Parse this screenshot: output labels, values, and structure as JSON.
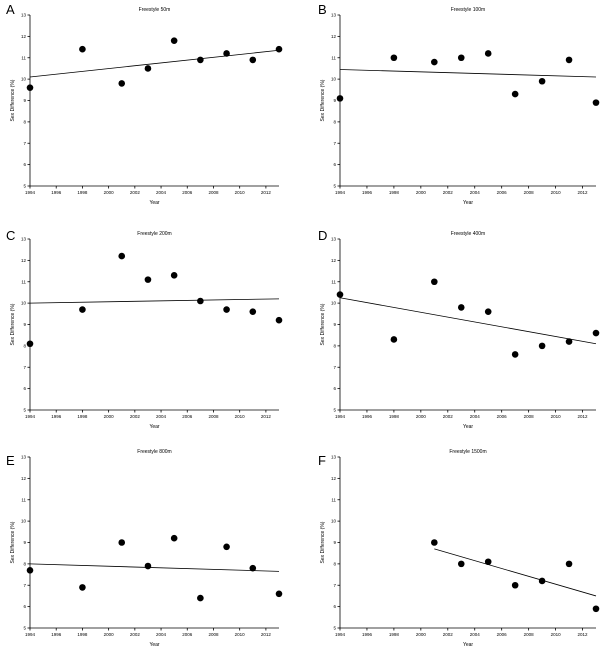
{
  "chart_data": [
    {
      "type": "scatter",
      "panel_label": "A",
      "title": "Freestyle 50m",
      "xlabel": "Year",
      "ylabel": "Sex Difference (%)",
      "xlim": [
        1994,
        2013
      ],
      "ylim": [
        5,
        13
      ],
      "x_ticks": [
        "1994",
        "1996",
        "1998",
        "2000",
        "2002",
        "2004",
        "2006",
        "2008",
        "2010",
        "2012"
      ],
      "y_ticks": [
        "5",
        "6",
        "7",
        "8",
        "9",
        "10",
        "11",
        "12",
        "13"
      ],
      "points": {
        "x": [
          1994,
          1998,
          2001,
          2003,
          2005,
          2007,
          2009,
          2011,
          2013
        ],
        "y": [
          9.6,
          11.4,
          9.8,
          10.5,
          11.8,
          10.9,
          11.2,
          10.9,
          11.4
        ]
      },
      "trend_line": {
        "x": [
          1994,
          2013
        ],
        "y": [
          10.1,
          11.35
        ]
      }
    },
    {
      "type": "scatter",
      "panel_label": "B",
      "title": "Freestyle 100m",
      "xlabel": "Year",
      "ylabel": "Sex Difference (%)",
      "xlim": [
        1994,
        2013
      ],
      "ylim": [
        5,
        13
      ],
      "x_ticks": [
        "1994",
        "1996",
        "1998",
        "2000",
        "2002",
        "2004",
        "2006",
        "2008",
        "2010",
        "2012"
      ],
      "y_ticks": [
        "5",
        "6",
        "7",
        "8",
        "9",
        "10",
        "11",
        "12",
        "13"
      ],
      "points": {
        "x": [
          1994,
          1998,
          2001,
          2003,
          2005,
          2007,
          2009,
          2011,
          2013
        ],
        "y": [
          9.1,
          11.0,
          10.8,
          11.0,
          11.2,
          9.3,
          9.9,
          10.9,
          8.9
        ]
      },
      "trend_line": {
        "x": [
          1994,
          2013
        ],
        "y": [
          10.45,
          10.1
        ]
      }
    },
    {
      "type": "scatter",
      "panel_label": "C",
      "title": "Freestyle 200m",
      "xlabel": "Year",
      "ylabel": "Sex Difference (%)",
      "xlim": [
        1994,
        2013
      ],
      "ylim": [
        5,
        13
      ],
      "x_ticks": [
        "1994",
        "1996",
        "1998",
        "2000",
        "2002",
        "2004",
        "2006",
        "2008",
        "2010",
        "2012"
      ],
      "y_ticks": [
        "5",
        "6",
        "7",
        "8",
        "9",
        "10",
        "11",
        "12",
        "13"
      ],
      "points": {
        "x": [
          1994,
          1998,
          2001,
          2003,
          2005,
          2007,
          2009,
          2011,
          2013
        ],
        "y": [
          8.1,
          9.7,
          12.2,
          11.1,
          11.3,
          10.1,
          9.7,
          9.6,
          9.2
        ]
      },
      "trend_line": {
        "x": [
          1994,
          2013
        ],
        "y": [
          10.0,
          10.2
        ]
      }
    },
    {
      "type": "scatter",
      "panel_label": "D",
      "title": "Freestyle 400m",
      "xlabel": "Year",
      "ylabel": "Sex Difference (%)",
      "xlim": [
        1994,
        2013
      ],
      "ylim": [
        5,
        13
      ],
      "x_ticks": [
        "1994",
        "1996",
        "1998",
        "2000",
        "2002",
        "2004",
        "2006",
        "2008",
        "2010",
        "2012"
      ],
      "y_ticks": [
        "5",
        "6",
        "7",
        "8",
        "9",
        "10",
        "11",
        "12",
        "13"
      ],
      "points": {
        "x": [
          1994,
          1998,
          2001,
          2003,
          2005,
          2007,
          2009,
          2011,
          2013
        ],
        "y": [
          10.4,
          8.3,
          11.0,
          9.8,
          9.6,
          7.6,
          8.0,
          8.2,
          8.6
        ]
      },
      "trend_line": {
        "x": [
          1994,
          2013
        ],
        "y": [
          10.25,
          8.1
        ]
      }
    },
    {
      "type": "scatter",
      "panel_label": "E",
      "title": "Freestyle 800m",
      "xlabel": "Year",
      "ylabel": "Sex Difference (%)",
      "xlim": [
        1994,
        2013
      ],
      "ylim": [
        5,
        13
      ],
      "x_ticks": [
        "1994",
        "1996",
        "1998",
        "2000",
        "2002",
        "2004",
        "2006",
        "2008",
        "2010",
        "2012"
      ],
      "y_ticks": [
        "5",
        "6",
        "7",
        "8",
        "9",
        "10",
        "11",
        "12",
        "13"
      ],
      "points": {
        "x": [
          1994,
          1998,
          2001,
          2003,
          2005,
          2007,
          2009,
          2011,
          2013
        ],
        "y": [
          7.7,
          6.9,
          9.0,
          7.9,
          9.2,
          6.4,
          8.8,
          7.8,
          6.6
        ]
      },
      "trend_line": {
        "x": [
          1994,
          2013
        ],
        "y": [
          8.0,
          7.65
        ]
      }
    },
    {
      "type": "scatter",
      "panel_label": "F",
      "title": "Freestyle 1500m",
      "xlabel": "Year",
      "ylabel": "Sex Difference (%)",
      "xlim": [
        1994,
        2013
      ],
      "ylim": [
        5,
        13
      ],
      "x_ticks": [
        "1994",
        "1996",
        "1998",
        "2000",
        "2002",
        "2004",
        "2006",
        "2008",
        "2010",
        "2012"
      ],
      "y_ticks": [
        "5",
        "6",
        "7",
        "8",
        "9",
        "10",
        "11",
        "12",
        "13"
      ],
      "points": {
        "x": [
          2001,
          2003,
          2005,
          2007,
          2009,
          2011,
          2013
        ],
        "y": [
          9.0,
          8.0,
          8.1,
          7.0,
          7.2,
          8.0,
          5.9
        ]
      },
      "trend_line": {
        "x": [
          2001,
          2013
        ],
        "y": [
          8.7,
          6.5
        ]
      }
    }
  ]
}
